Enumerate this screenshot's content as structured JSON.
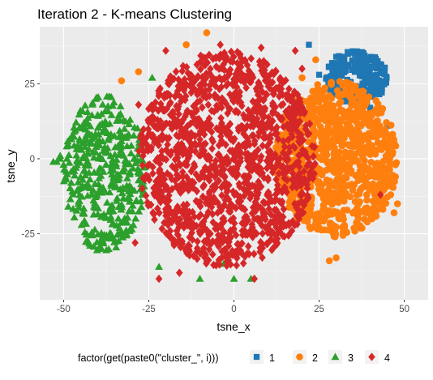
{
  "chart_data": {
    "type": "scatter",
    "title": "Iteration 2 - K-means Clustering",
    "xlabel": "tsne_x",
    "ylabel": "tsne_y",
    "xlim": [
      -57,
      57
    ],
    "ylim": [
      -47,
      44
    ],
    "x_ticks": [
      -50,
      -25,
      0,
      25,
      50
    ],
    "x_tick_labels": [
      "-50",
      "-25",
      "0",
      "25",
      "50"
    ],
    "y_ticks": [
      -25,
      0,
      25
    ],
    "y_tick_labels": [
      "-25",
      "0",
      "25"
    ],
    "grid": true,
    "panel_background": "#ebebeb",
    "legend_position": "bottom",
    "legend_title": "factor(get(paste0(\"cluster_\", i)))",
    "series": [
      {
        "name": "1",
        "color": "#1f77b4",
        "shape": "square",
        "region": {
          "cx": 36,
          "cy": 27,
          "rx": 9,
          "ry": 9
        },
        "extra_points": [
          [
            22,
            38
          ],
          [
            25,
            28
          ],
          [
            40,
            17
          ],
          [
            45,
            11
          ],
          [
            46,
            5
          ],
          [
            37,
            31
          ],
          [
            43,
            25
          ],
          [
            30,
            34
          ]
        ]
      },
      {
        "name": "2",
        "color": "#ff7f0e",
        "shape": "circle",
        "region": {
          "cx": 30,
          "cy": 0,
          "rx": 18,
          "ry": 26
        },
        "extra_points": [
          [
            -8,
            42
          ],
          [
            -14,
            38
          ],
          [
            -33,
            26
          ],
          [
            -28,
            29
          ],
          [
            48,
            -15
          ],
          [
            46,
            -12
          ],
          [
            47,
            -18
          ],
          [
            24,
            33
          ],
          [
            20,
            27
          ],
          [
            30,
            -33
          ],
          [
            28,
            -34
          ]
        ]
      },
      {
        "name": "3",
        "color": "#2ca02c",
        "shape": "triangle",
        "region": {
          "cx": -38,
          "cy": -5,
          "rx": 12,
          "ry": 26
        },
        "extra_points": [
          [
            -51,
            0
          ],
          [
            -52,
            -1
          ],
          [
            -50,
            -2
          ],
          [
            -51,
            1
          ],
          [
            -49,
            0
          ],
          [
            -53,
            -1
          ],
          [
            -22,
            -36
          ],
          [
            -10,
            -40
          ],
          [
            5,
            -40
          ],
          [
            0,
            -40
          ],
          [
            -24,
            27
          ],
          [
            -3,
            -35
          ]
        ]
      },
      {
        "name": "4",
        "color": "#d62728",
        "shape": "diamond",
        "region": {
          "cx": -2,
          "cy": 0,
          "rx": 26,
          "ry": 36
        },
        "extra_points": [
          [
            -20,
            36
          ],
          [
            -4,
            38
          ],
          [
            8,
            37
          ],
          [
            18,
            36
          ],
          [
            -28,
            18
          ],
          [
            -16,
            -38
          ],
          [
            -22,
            -40
          ],
          [
            6,
            -40
          ],
          [
            -29,
            -28
          ],
          [
            17,
            -24
          ],
          [
            20,
            30
          ],
          [
            43,
            -12
          ],
          [
            20,
            -8
          ]
        ]
      }
    ]
  }
}
